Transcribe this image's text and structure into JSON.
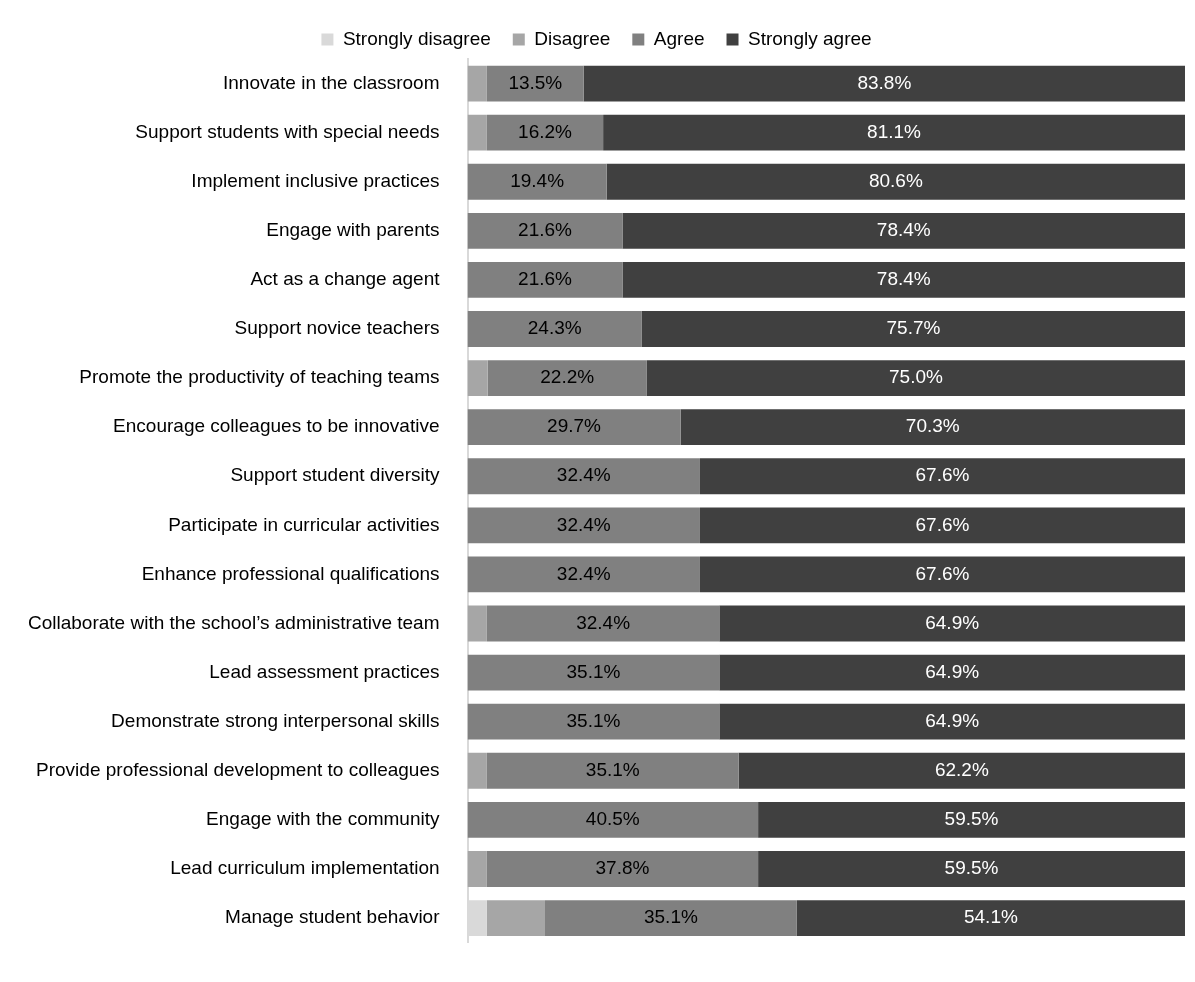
{
  "chart_data": {
    "type": "bar",
    "orientation": "horizontal",
    "stacked": true,
    "legend": "top",
    "categories": [
      "Innovate in the classroom",
      "Support students with special needs",
      "Implement inclusive practices",
      "Engage with parents",
      "Act as a change agent",
      "Support novice teachers",
      "Promote the productivity of teaching teams",
      "Encourage colleagues to be innovative",
      "Support student diversity",
      "Participate in curricular activities",
      "Enhance professional qualifications",
      "Collaborate with the school’s administrative team",
      "Lead assessment practices",
      "Demonstrate strong interpersonal skills",
      "Provide professional development to colleagues",
      "Engage with the community",
      "Lead curriculum implementation",
      "Manage student behavior"
    ],
    "series": [
      {
        "name": "Strongly disagree",
        "color": "#d9d9d9",
        "values": [
          0,
          0,
          0,
          0,
          0,
          0,
          0,
          0,
          0,
          0,
          0,
          0,
          0,
          0,
          0,
          0,
          0,
          2.7
        ]
      },
      {
        "name": "Disagree",
        "color": "#a6a6a6",
        "values": [
          2.7,
          2.7,
          0,
          0,
          0,
          0,
          2.8,
          0,
          0,
          0,
          0,
          2.7,
          0,
          0,
          2.7,
          0,
          2.7,
          8.1
        ]
      },
      {
        "name": "Agree",
        "color": "#808080",
        "values": [
          13.5,
          16.2,
          19.4,
          21.6,
          21.6,
          24.3,
          22.2,
          29.7,
          32.4,
          32.4,
          32.4,
          32.4,
          35.1,
          35.1,
          35.1,
          40.5,
          37.8,
          35.1
        ],
        "value_labels": [
          "13.5%",
          "16.2%",
          "19.4%",
          "21.6%",
          "21.6%",
          "24.3%",
          "22.2%",
          "29.7%",
          "32.4%",
          "32.4%",
          "32.4%",
          "32.4%",
          "35.1%",
          "35.1%",
          "35.1%",
          "40.5%",
          "37.8%",
          "35.1%"
        ]
      },
      {
        "name": "Strongly agree",
        "color": "#404040",
        "values": [
          83.8,
          81.1,
          80.6,
          78.4,
          78.4,
          75.7,
          75.0,
          70.3,
          67.6,
          67.6,
          67.6,
          64.9,
          64.9,
          64.9,
          62.2,
          59.5,
          59.5,
          54.1
        ],
        "value_labels": [
          "83.8%",
          "81.1%",
          "80.6%",
          "78.4%",
          "78.4%",
          "75.7%",
          "75.0%",
          "70.3%",
          "67.6%",
          "67.6%",
          "67.6%",
          "64.9%",
          "64.9%",
          "64.9%",
          "62.2%",
          "59.5%",
          "59.5%",
          "54.1%"
        ]
      }
    ]
  }
}
